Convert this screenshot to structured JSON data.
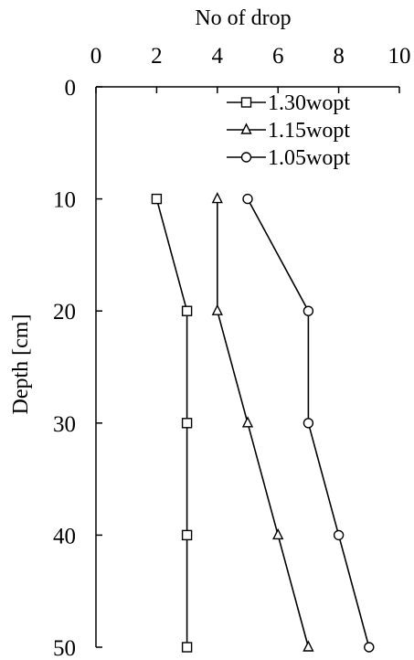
{
  "chart_data": {
    "type": "line",
    "title": "",
    "xlabel": "No of drop",
    "ylabel": "Depth [cm]",
    "xlim": [
      0,
      10
    ],
    "ylim": [
      0,
      50
    ],
    "x_axis_position": "top",
    "y_axis_inverted": true,
    "xticks": [
      "0",
      "2",
      "4",
      "6",
      "8",
      "10"
    ],
    "yticks": [
      "0",
      "10",
      "20",
      "30",
      "40",
      "50"
    ],
    "grid": false,
    "legend_position": "top-right",
    "series": [
      {
        "name": "1.30wopt",
        "marker": "square",
        "color": "#000000",
        "points": [
          {
            "drops": 2,
            "depth": 10
          },
          {
            "drops": 3,
            "depth": 20
          },
          {
            "drops": 3,
            "depth": 30
          },
          {
            "drops": 3,
            "depth": 40
          },
          {
            "drops": 3,
            "depth": 50
          }
        ]
      },
      {
        "name": "1.15wopt",
        "marker": "triangle",
        "color": "#000000",
        "points": [
          {
            "drops": 4,
            "depth": 10
          },
          {
            "drops": 4,
            "depth": 20
          },
          {
            "drops": 5,
            "depth": 30
          },
          {
            "drops": 6,
            "depth": 40
          },
          {
            "drops": 7,
            "depth": 50
          }
        ]
      },
      {
        "name": "1.05wopt",
        "marker": "circle",
        "color": "#000000",
        "points": [
          {
            "drops": 5,
            "depth": 10
          },
          {
            "drops": 7,
            "depth": 20
          },
          {
            "drops": 7,
            "depth": 30
          },
          {
            "drops": 8,
            "depth": 40
          },
          {
            "drops": 9,
            "depth": 50
          }
        ]
      }
    ]
  }
}
